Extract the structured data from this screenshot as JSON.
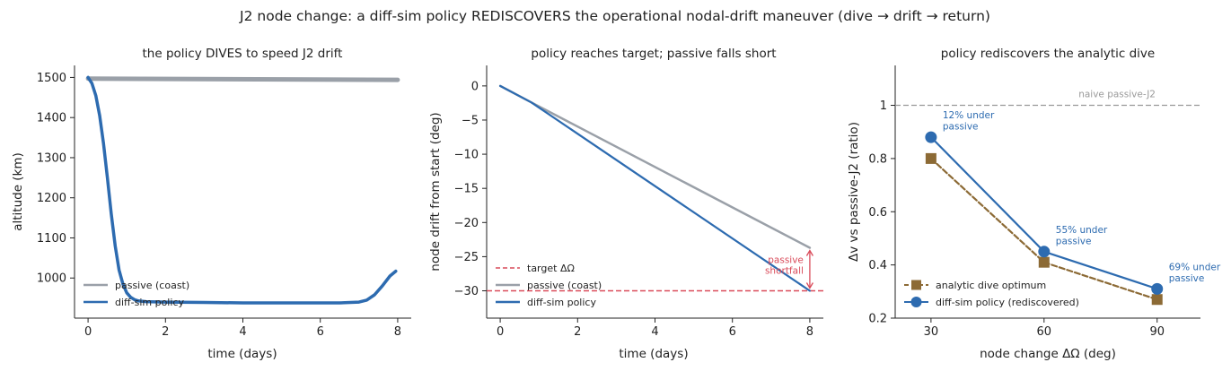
{
  "figure_title": "J2 node change: a diff-sim policy REDISCOVERS the operational nodal-drift maneuver (dive → drift → return)",
  "colors": {
    "policy": "#2d6bb0",
    "passive": "#9aa0a8",
    "target": "#d94b5a",
    "analytic": "#8c6a35",
    "naive": "#9a9a9a"
  },
  "chart_data": [
    {
      "type": "line",
      "title": "the policy DIVES to speed J2 drift",
      "xlabel": "time (days)",
      "ylabel": "altitude (km)",
      "xlim": [
        -0.35,
        8.35
      ],
      "ylim": [
        900,
        1530
      ],
      "xticks": [
        0,
        2,
        4,
        6,
        8
      ],
      "yticks": [
        1000,
        1100,
        1200,
        1300,
        1400,
        1500
      ],
      "legend_position": "lower-left",
      "series": [
        {
          "name": "passive (coast)",
          "color_key": "passive",
          "line_width": 5,
          "x": [
            0,
            8
          ],
          "y": [
            1497,
            1494
          ]
        },
        {
          "name": "diff-sim policy",
          "color_key": "policy",
          "line_width": 3.5,
          "x": [
            0,
            0.1,
            0.2,
            0.3,
            0.4,
            0.5,
            0.6,
            0.7,
            0.8,
            0.9,
            1.0,
            1.1,
            1.2,
            1.3,
            1.5,
            2,
            3,
            4,
            5,
            6,
            6.5,
            7,
            7.2,
            7.4,
            7.6,
            7.8,
            7.95
          ],
          "y": [
            1500,
            1485,
            1455,
            1405,
            1335,
            1250,
            1160,
            1080,
            1020,
            985,
            963,
            952,
            946,
            943,
            941,
            940,
            939,
            938,
            938,
            938,
            938,
            940,
            945,
            958,
            980,
            1005,
            1017
          ]
        }
      ]
    },
    {
      "type": "line",
      "title": "policy reaches target; passive falls short",
      "xlabel": "time (days)",
      "ylabel": "node drift from start (deg)",
      "xlim": [
        -0.35,
        8.35
      ],
      "ylim": [
        -34,
        3
      ],
      "xticks": [
        0,
        2,
        4,
        6,
        8
      ],
      "yticks": [
        0,
        -5,
        -10,
        -15,
        -20,
        -25,
        -30
      ],
      "legend_position": "lower-left",
      "target_line": {
        "name": "target ΔΩ",
        "y": -30,
        "color_key": "target"
      },
      "series": [
        {
          "name": "passive (coast)",
          "color_key": "passive",
          "line_width": 2.5,
          "x": [
            0,
            0.8,
            8
          ],
          "y": [
            0,
            -2.4,
            -23.7
          ]
        },
        {
          "name": "diff-sim policy",
          "color_key": "policy",
          "line_width": 2.2,
          "x": [
            0,
            0.8,
            8
          ],
          "y": [
            0,
            -2.4,
            -30
          ]
        }
      ],
      "annotation": {
        "text": [
          "passive",
          "shortfall"
        ],
        "x": 8,
        "y_from": -23.7,
        "y_to": -30
      }
    },
    {
      "type": "line",
      "title": "policy rediscovers the analytic dive",
      "xlabel": "node change ΔΩ (deg)",
      "ylabel": "Δv vs passive-J2  (ratio)",
      "xlim": [
        20.5,
        101.5
      ],
      "ylim": [
        0.2,
        1.15
      ],
      "xticks": [
        30,
        60,
        90
      ],
      "yticks": [
        0.2,
        0.4,
        0.6,
        0.8,
        1.0
      ],
      "legend_position": "lower-left",
      "naive_line": {
        "label": "naive passive-J2",
        "y": 1.0,
        "color_key": "naive"
      },
      "series": [
        {
          "name": "analytic dive optimum",
          "color_key": "analytic",
          "marker": "square",
          "dashed": true,
          "x": [
            30,
            60,
            90
          ],
          "y": [
            0.8,
            0.41,
            0.27
          ]
        },
        {
          "name": "diff-sim policy (rediscovered)",
          "color_key": "policy",
          "marker": "circle",
          "dashed": false,
          "x": [
            30,
            60,
            90
          ],
          "y": [
            0.88,
            0.45,
            0.31
          ]
        }
      ],
      "annotations": [
        {
          "x": 30,
          "y": 0.88,
          "lines": [
            "12% under",
            "passive"
          ]
        },
        {
          "x": 60,
          "y": 0.45,
          "lines": [
            "55% under",
            "passive"
          ]
        },
        {
          "x": 90,
          "y": 0.31,
          "lines": [
            "69% under",
            "passive"
          ]
        }
      ]
    }
  ]
}
